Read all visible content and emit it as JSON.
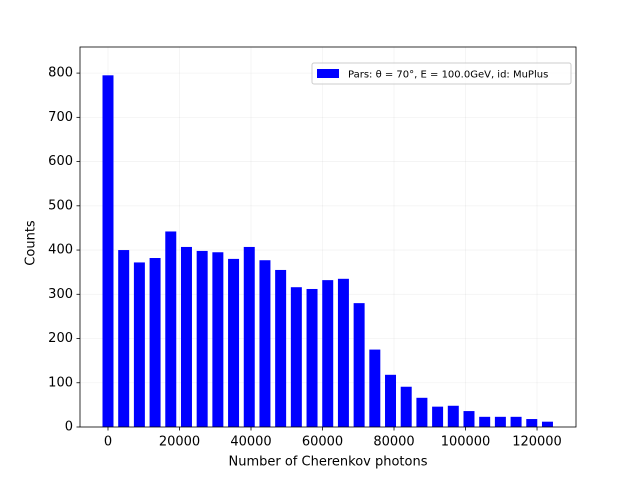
{
  "chart_data": {
    "type": "histogram",
    "xlabel": "Number of Cherenkov photons",
    "ylabel": "Counts",
    "bins": [
      -2195,
      2195,
      6585,
      10975,
      15365,
      19755,
      24145,
      28535,
      32925,
      37315,
      41705,
      46095,
      50485,
      54875,
      59265,
      63655,
      68045,
      72435,
      76825,
      81215,
      85605,
      89995,
      94385,
      98775,
      103165,
      107555,
      111945,
      116335,
      120725,
      125115
    ],
    "series": [
      {
        "name": "Pars: θ = 70°, E = 100.0GeV, id: MuPlus",
        "color": "#0000ff",
        "values": [
          795,
          400,
          372,
          382,
          442,
          407,
          398,
          395,
          380,
          407,
          377,
          355,
          316,
          312,
          332,
          335,
          280,
          175,
          118,
          91,
          66,
          46,
          48,
          36,
          23,
          23,
          23,
          18,
          12
        ]
      }
    ],
    "xlim": [
      -7830,
      130900
    ],
    "ylim": [
      0,
      859
    ],
    "xticks": [
      0,
      20000,
      40000,
      60000,
      80000,
      100000,
      120000
    ],
    "yticks": [
      0,
      100,
      200,
      300,
      400,
      500,
      600,
      700,
      800
    ],
    "grid": true,
    "legend": "upper right"
  }
}
